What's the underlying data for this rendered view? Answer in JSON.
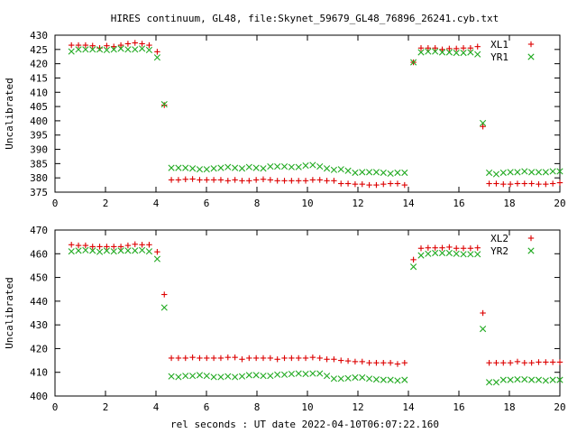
{
  "figure": {
    "title": "HIRES continuum, GL48, file:Skynet_59679_GL48_76896_26241.cyb.txt",
    "xlabel": "rel seconds : UT date 2022-04-10T06:07:22.160"
  },
  "colors": {
    "red": "#dd0000",
    "green": "#22aa22",
    "axis": "#000000"
  },
  "chart_data": [
    {
      "type": "scatter",
      "title": "HIRES continuum, GL48, file:Skynet_59679_GL48_76896_26241.cyb.txt",
      "xlabel": "",
      "ylabel": "Uncalibrated",
      "xlim": [
        0,
        20
      ],
      "ylim": [
        375,
        430
      ],
      "xticks": [
        0,
        2,
        4,
        6,
        8,
        10,
        12,
        14,
        16,
        18,
        20
      ],
      "yticks": [
        375,
        380,
        385,
        390,
        395,
        400,
        405,
        410,
        415,
        420,
        425,
        430
      ],
      "grid": false,
      "legend": "top-right",
      "series": [
        {
          "name": "XL1",
          "marker": "plus",
          "color": "#dd0000",
          "x": [
            0.65,
            0.93,
            1.21,
            1.49,
            1.77,
            2.05,
            2.33,
            2.61,
            2.89,
            3.17,
            3.45,
            3.73,
            4.05,
            4.33,
            4.61,
            4.89,
            5.17,
            5.45,
            5.73,
            6.01,
            6.29,
            6.57,
            6.85,
            7.13,
            7.41,
            7.69,
            7.97,
            8.25,
            8.53,
            8.81,
            9.09,
            9.37,
            9.65,
            9.93,
            10.21,
            10.49,
            10.77,
            11.05,
            11.33,
            11.61,
            11.89,
            12.17,
            12.45,
            12.73,
            13.01,
            13.29,
            13.57,
            13.85,
            14.2,
            14.5,
            14.78,
            15.06,
            15.34,
            15.62,
            15.9,
            16.18,
            16.46,
            16.74,
            16.95,
            17.2,
            17.48,
            17.76,
            18.04,
            18.32,
            18.6,
            18.88,
            19.16,
            19.44,
            19.72,
            20.0
          ],
          "y": [
            426.5,
            426.5,
            426.5,
            426.3,
            425.5,
            426.3,
            426.0,
            426.5,
            427.0,
            427.3,
            427.0,
            426.5,
            424.2,
            405.5,
            379.3,
            379.3,
            379.5,
            379.6,
            379.3,
            379.3,
            379.3,
            379.3,
            379.0,
            379.3,
            379.0,
            379.0,
            379.3,
            379.5,
            379.3,
            379.0,
            379.0,
            379.0,
            379.0,
            379.0,
            379.3,
            379.3,
            379.0,
            379.0,
            378.0,
            378.0,
            377.8,
            377.8,
            377.5,
            377.5,
            377.8,
            378.0,
            378.0,
            377.5,
            420.5,
            425.5,
            425.5,
            425.5,
            425.0,
            425.3,
            425.3,
            425.5,
            425.5,
            426.0,
            398.0,
            378.0,
            378.0,
            377.8,
            377.8,
            378.0,
            378.0,
            378.0,
            377.8,
            377.8,
            378.0,
            378.3
          ]
        },
        {
          "name": "YR1",
          "marker": "cross",
          "color": "#22aa22",
          "x": [
            0.65,
            0.93,
            1.21,
            1.49,
            1.77,
            2.05,
            2.33,
            2.61,
            2.89,
            3.17,
            3.45,
            3.73,
            4.05,
            4.33,
            4.61,
            4.89,
            5.17,
            5.45,
            5.73,
            6.01,
            6.29,
            6.57,
            6.85,
            7.13,
            7.41,
            7.69,
            7.97,
            8.25,
            8.53,
            8.81,
            9.09,
            9.37,
            9.65,
            9.93,
            10.21,
            10.49,
            10.77,
            11.05,
            11.33,
            11.61,
            11.89,
            12.17,
            12.45,
            12.73,
            13.01,
            13.29,
            13.57,
            13.85,
            14.2,
            14.5,
            14.78,
            15.06,
            15.34,
            15.62,
            15.9,
            16.18,
            16.46,
            16.74,
            16.95,
            17.2,
            17.48,
            17.76,
            18.04,
            18.32,
            18.6,
            18.88,
            19.16,
            19.44,
            19.72,
            20.0
          ],
          "y": [
            424.3,
            425.0,
            425.0,
            425.0,
            425.0,
            424.8,
            425.0,
            425.3,
            425.0,
            425.0,
            425.3,
            424.8,
            422.2,
            405.8,
            383.5,
            383.5,
            383.5,
            383.3,
            383.0,
            383.0,
            383.3,
            383.5,
            383.8,
            383.5,
            383.3,
            383.8,
            383.5,
            383.3,
            384.0,
            384.0,
            384.0,
            383.8,
            383.8,
            384.3,
            384.5,
            384.0,
            383.3,
            382.8,
            383.0,
            382.5,
            381.8,
            382.0,
            382.0,
            382.0,
            381.8,
            381.5,
            381.8,
            381.8,
            420.5,
            424.0,
            424.3,
            424.3,
            424.0,
            424.0,
            423.8,
            423.8,
            424.0,
            423.3,
            399.2,
            381.8,
            381.3,
            381.8,
            382.0,
            382.0,
            382.3,
            382.0,
            382.0,
            382.0,
            382.3,
            382.3
          ]
        }
      ]
    },
    {
      "type": "scatter",
      "title": "",
      "xlabel": "rel seconds : UT date 2022-04-10T06:07:22.160",
      "ylabel": "Uncalibrated",
      "xlim": [
        0,
        20
      ],
      "ylim": [
        400,
        470
      ],
      "xticks": [
        0,
        2,
        4,
        6,
        8,
        10,
        12,
        14,
        16,
        18,
        20
      ],
      "yticks": [
        400,
        410,
        420,
        430,
        440,
        450,
        460,
        470
      ],
      "grid": false,
      "legend": "top-right",
      "series": [
        {
          "name": "XL2",
          "marker": "plus",
          "color": "#dd0000",
          "x": [
            0.65,
            0.93,
            1.21,
            1.49,
            1.77,
            2.05,
            2.33,
            2.61,
            2.89,
            3.17,
            3.45,
            3.73,
            4.05,
            4.33,
            4.61,
            4.89,
            5.17,
            5.45,
            5.73,
            6.01,
            6.29,
            6.57,
            6.85,
            7.13,
            7.41,
            7.69,
            7.97,
            8.25,
            8.53,
            8.81,
            9.09,
            9.37,
            9.65,
            9.93,
            10.21,
            10.49,
            10.77,
            11.05,
            11.33,
            11.61,
            11.89,
            12.17,
            12.45,
            12.73,
            13.01,
            13.29,
            13.57,
            13.85,
            14.2,
            14.5,
            14.78,
            15.06,
            15.34,
            15.62,
            15.9,
            16.18,
            16.46,
            16.74,
            16.95,
            17.2,
            17.48,
            17.76,
            18.04,
            18.32,
            18.6,
            18.88,
            19.16,
            19.44,
            19.72,
            20.0
          ],
          "y": [
            463.8,
            463.5,
            463.5,
            463.0,
            463.0,
            463.0,
            463.0,
            463.0,
            463.5,
            464.0,
            463.8,
            463.8,
            460.8,
            442.8,
            416.0,
            416.0,
            416.0,
            416.3,
            416.0,
            416.0,
            416.0,
            416.0,
            416.3,
            416.3,
            415.5,
            416.0,
            416.0,
            416.0,
            416.0,
            415.5,
            416.0,
            416.0,
            416.0,
            416.0,
            416.3,
            416.0,
            415.5,
            415.5,
            415.0,
            414.8,
            414.5,
            414.5,
            414.0,
            414.0,
            414.0,
            414.0,
            413.5,
            414.0,
            457.5,
            462.3,
            462.5,
            462.5,
            462.5,
            462.8,
            462.3,
            462.3,
            462.3,
            462.5,
            435.0,
            414.0,
            414.0,
            414.0,
            414.0,
            414.5,
            414.0,
            414.0,
            414.3,
            414.3,
            414.3,
            414.3
          ]
        },
        {
          "name": "YR2",
          "marker": "cross",
          "color": "#22aa22",
          "x": [
            0.65,
            0.93,
            1.21,
            1.49,
            1.77,
            2.05,
            2.33,
            2.61,
            2.89,
            3.17,
            3.45,
            3.73,
            4.05,
            4.33,
            4.61,
            4.89,
            5.17,
            5.45,
            5.73,
            6.01,
            6.29,
            6.57,
            6.85,
            7.13,
            7.41,
            7.69,
            7.97,
            8.25,
            8.53,
            8.81,
            9.09,
            9.37,
            9.65,
            9.93,
            10.21,
            10.49,
            10.77,
            11.05,
            11.33,
            11.61,
            11.89,
            12.17,
            12.45,
            12.73,
            13.01,
            13.29,
            13.57,
            13.85,
            14.2,
            14.5,
            14.78,
            15.06,
            15.34,
            15.62,
            15.9,
            16.18,
            16.46,
            16.74,
            16.95,
            17.2,
            17.48,
            17.76,
            18.04,
            18.32,
            18.6,
            18.88,
            19.16,
            19.44,
            19.72,
            20.0
          ],
          "y": [
            461.0,
            461.3,
            461.5,
            461.3,
            460.8,
            461.3,
            461.0,
            461.3,
            461.3,
            461.3,
            461.5,
            461.0,
            457.8,
            437.3,
            408.3,
            408.0,
            408.5,
            408.5,
            408.8,
            408.5,
            408.0,
            408.0,
            408.3,
            408.0,
            408.3,
            408.8,
            408.8,
            408.5,
            408.5,
            409.0,
            409.0,
            409.3,
            409.5,
            409.3,
            409.5,
            409.5,
            408.5,
            407.3,
            407.3,
            407.5,
            407.8,
            407.8,
            407.3,
            407.0,
            406.8,
            406.8,
            406.5,
            406.8,
            454.5,
            459.3,
            460.0,
            460.3,
            460.3,
            460.3,
            460.0,
            459.8,
            459.8,
            459.8,
            428.3,
            405.8,
            405.8,
            406.8,
            406.8,
            407.0,
            407.0,
            406.8,
            406.8,
            406.5,
            406.8,
            406.8
          ]
        }
      ]
    }
  ]
}
